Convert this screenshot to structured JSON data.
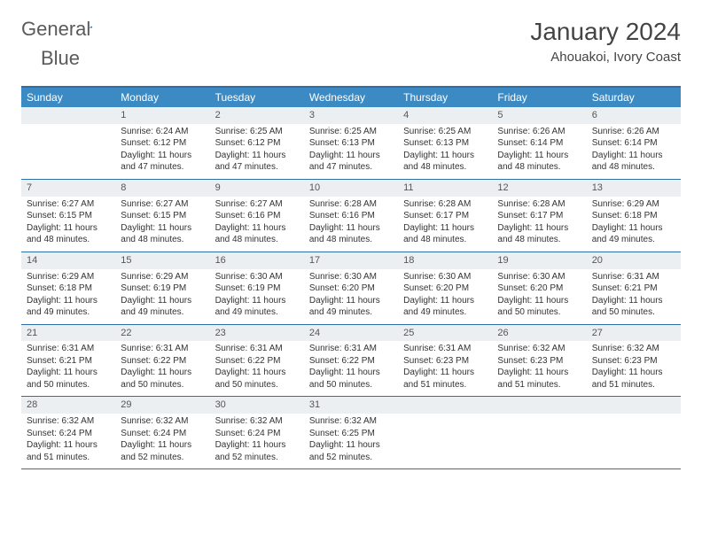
{
  "brand": {
    "word1": "General",
    "word2": "Blue"
  },
  "header": {
    "title": "January 2024",
    "subtitle": "Ahouakoi, Ivory Coast"
  },
  "colors": {
    "header_bar": "#3b8ac4",
    "rule": "#2f6fa8",
    "daynum_bg": "#eceff1",
    "text": "#333333"
  },
  "weekdays": [
    "Sunday",
    "Monday",
    "Tuesday",
    "Wednesday",
    "Thursday",
    "Friday",
    "Saturday"
  ],
  "weeks": [
    [
      {
        "day": "",
        "sunrise": "",
        "sunset": "",
        "daylight": ""
      },
      {
        "day": "1",
        "sunrise": "Sunrise: 6:24 AM",
        "sunset": "Sunset: 6:12 PM",
        "daylight": "Daylight: 11 hours and 47 minutes."
      },
      {
        "day": "2",
        "sunrise": "Sunrise: 6:25 AM",
        "sunset": "Sunset: 6:12 PM",
        "daylight": "Daylight: 11 hours and 47 minutes."
      },
      {
        "day": "3",
        "sunrise": "Sunrise: 6:25 AM",
        "sunset": "Sunset: 6:13 PM",
        "daylight": "Daylight: 11 hours and 47 minutes."
      },
      {
        "day": "4",
        "sunrise": "Sunrise: 6:25 AM",
        "sunset": "Sunset: 6:13 PM",
        "daylight": "Daylight: 11 hours and 48 minutes."
      },
      {
        "day": "5",
        "sunrise": "Sunrise: 6:26 AM",
        "sunset": "Sunset: 6:14 PM",
        "daylight": "Daylight: 11 hours and 48 minutes."
      },
      {
        "day": "6",
        "sunrise": "Sunrise: 6:26 AM",
        "sunset": "Sunset: 6:14 PM",
        "daylight": "Daylight: 11 hours and 48 minutes."
      }
    ],
    [
      {
        "day": "7",
        "sunrise": "Sunrise: 6:27 AM",
        "sunset": "Sunset: 6:15 PM",
        "daylight": "Daylight: 11 hours and 48 minutes."
      },
      {
        "day": "8",
        "sunrise": "Sunrise: 6:27 AM",
        "sunset": "Sunset: 6:15 PM",
        "daylight": "Daylight: 11 hours and 48 minutes."
      },
      {
        "day": "9",
        "sunrise": "Sunrise: 6:27 AM",
        "sunset": "Sunset: 6:16 PM",
        "daylight": "Daylight: 11 hours and 48 minutes."
      },
      {
        "day": "10",
        "sunrise": "Sunrise: 6:28 AM",
        "sunset": "Sunset: 6:16 PM",
        "daylight": "Daylight: 11 hours and 48 minutes."
      },
      {
        "day": "11",
        "sunrise": "Sunrise: 6:28 AM",
        "sunset": "Sunset: 6:17 PM",
        "daylight": "Daylight: 11 hours and 48 minutes."
      },
      {
        "day": "12",
        "sunrise": "Sunrise: 6:28 AM",
        "sunset": "Sunset: 6:17 PM",
        "daylight": "Daylight: 11 hours and 48 minutes."
      },
      {
        "day": "13",
        "sunrise": "Sunrise: 6:29 AM",
        "sunset": "Sunset: 6:18 PM",
        "daylight": "Daylight: 11 hours and 49 minutes."
      }
    ],
    [
      {
        "day": "14",
        "sunrise": "Sunrise: 6:29 AM",
        "sunset": "Sunset: 6:18 PM",
        "daylight": "Daylight: 11 hours and 49 minutes."
      },
      {
        "day": "15",
        "sunrise": "Sunrise: 6:29 AM",
        "sunset": "Sunset: 6:19 PM",
        "daylight": "Daylight: 11 hours and 49 minutes."
      },
      {
        "day": "16",
        "sunrise": "Sunrise: 6:30 AM",
        "sunset": "Sunset: 6:19 PM",
        "daylight": "Daylight: 11 hours and 49 minutes."
      },
      {
        "day": "17",
        "sunrise": "Sunrise: 6:30 AM",
        "sunset": "Sunset: 6:20 PM",
        "daylight": "Daylight: 11 hours and 49 minutes."
      },
      {
        "day": "18",
        "sunrise": "Sunrise: 6:30 AM",
        "sunset": "Sunset: 6:20 PM",
        "daylight": "Daylight: 11 hours and 49 minutes."
      },
      {
        "day": "19",
        "sunrise": "Sunrise: 6:30 AM",
        "sunset": "Sunset: 6:20 PM",
        "daylight": "Daylight: 11 hours and 50 minutes."
      },
      {
        "day": "20",
        "sunrise": "Sunrise: 6:31 AM",
        "sunset": "Sunset: 6:21 PM",
        "daylight": "Daylight: 11 hours and 50 minutes."
      }
    ],
    [
      {
        "day": "21",
        "sunrise": "Sunrise: 6:31 AM",
        "sunset": "Sunset: 6:21 PM",
        "daylight": "Daylight: 11 hours and 50 minutes."
      },
      {
        "day": "22",
        "sunrise": "Sunrise: 6:31 AM",
        "sunset": "Sunset: 6:22 PM",
        "daylight": "Daylight: 11 hours and 50 minutes."
      },
      {
        "day": "23",
        "sunrise": "Sunrise: 6:31 AM",
        "sunset": "Sunset: 6:22 PM",
        "daylight": "Daylight: 11 hours and 50 minutes."
      },
      {
        "day": "24",
        "sunrise": "Sunrise: 6:31 AM",
        "sunset": "Sunset: 6:22 PM",
        "daylight": "Daylight: 11 hours and 50 minutes."
      },
      {
        "day": "25",
        "sunrise": "Sunrise: 6:31 AM",
        "sunset": "Sunset: 6:23 PM",
        "daylight": "Daylight: 11 hours and 51 minutes."
      },
      {
        "day": "26",
        "sunrise": "Sunrise: 6:32 AM",
        "sunset": "Sunset: 6:23 PM",
        "daylight": "Daylight: 11 hours and 51 minutes."
      },
      {
        "day": "27",
        "sunrise": "Sunrise: 6:32 AM",
        "sunset": "Sunset: 6:23 PM",
        "daylight": "Daylight: 11 hours and 51 minutes."
      }
    ],
    [
      {
        "day": "28",
        "sunrise": "Sunrise: 6:32 AM",
        "sunset": "Sunset: 6:24 PM",
        "daylight": "Daylight: 11 hours and 51 minutes."
      },
      {
        "day": "29",
        "sunrise": "Sunrise: 6:32 AM",
        "sunset": "Sunset: 6:24 PM",
        "daylight": "Daylight: 11 hours and 52 minutes."
      },
      {
        "day": "30",
        "sunrise": "Sunrise: 6:32 AM",
        "sunset": "Sunset: 6:24 PM",
        "daylight": "Daylight: 11 hours and 52 minutes."
      },
      {
        "day": "31",
        "sunrise": "Sunrise: 6:32 AM",
        "sunset": "Sunset: 6:25 PM",
        "daylight": "Daylight: 11 hours and 52 minutes."
      },
      {
        "day": "",
        "sunrise": "",
        "sunset": "",
        "daylight": ""
      },
      {
        "day": "",
        "sunrise": "",
        "sunset": "",
        "daylight": ""
      },
      {
        "day": "",
        "sunrise": "",
        "sunset": "",
        "daylight": ""
      }
    ]
  ]
}
